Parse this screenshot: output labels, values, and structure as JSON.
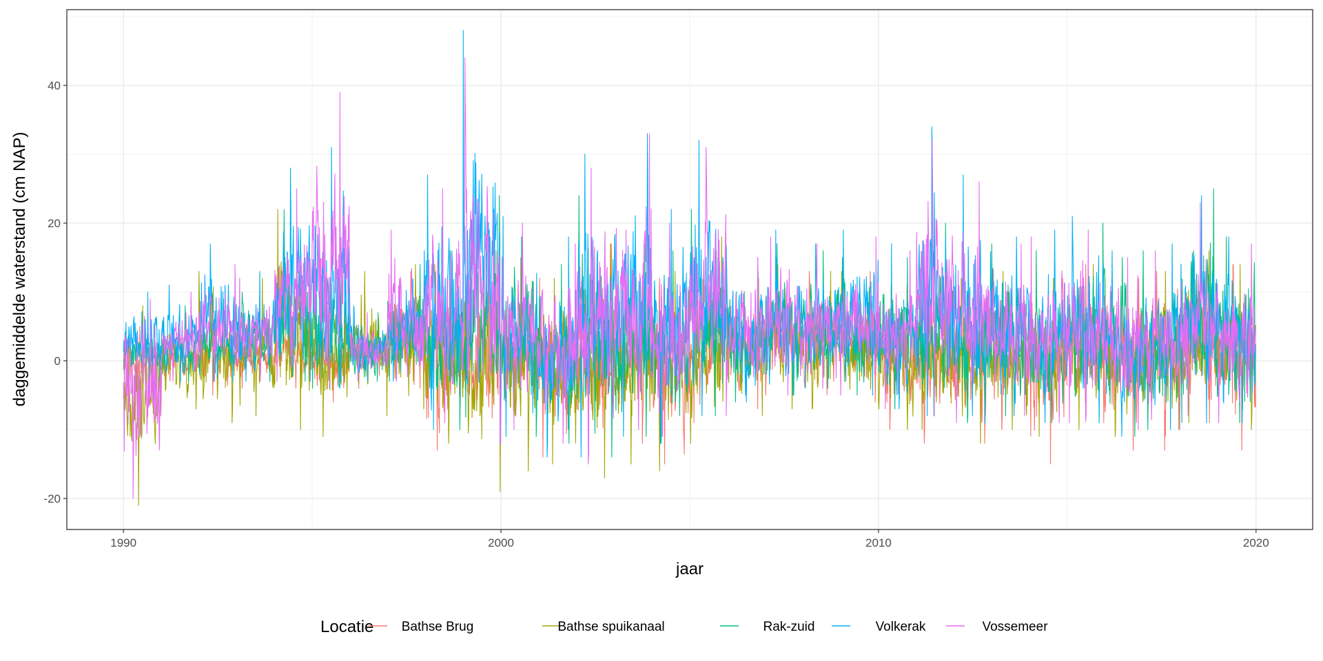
{
  "chart_data": {
    "type": "line",
    "title": "",
    "xlabel": "jaar",
    "ylabel": "daggemiddelde waterstand (cm NAP)",
    "xlim": [
      1988.5,
      2021.5
    ],
    "ylim": [
      -24.5,
      51
    ],
    "x_ticks": [
      1990,
      2000,
      2010,
      2020
    ],
    "x_tick_labels": [
      "1990",
      "2000",
      "2010",
      "2020"
    ],
    "y_ticks": [
      -20,
      0,
      20,
      40
    ],
    "y_tick_labels": [
      "-20",
      "0",
      "20",
      "40"
    ],
    "grid": true,
    "legend": {
      "title": "Locatie",
      "position": "bottom",
      "entries": [
        "Bathse Brug",
        "Bathse spuikanaal",
        "Rak-zuid",
        "Volkerak",
        "Vossemeer"
      ]
    },
    "colors": {
      "Bathse Brug": "#F8766D",
      "Bathse spuikanaal": "#A3A500",
      "Rak-zuid": "#00BF7D",
      "Volkerak": "#00B0F6",
      "Vossemeer": "#E76BF3"
    },
    "yearly_envelope": {
      "years": [
        1990,
        1991,
        1992,
        1993,
        1994,
        1995,
        1996,
        1997,
        1998,
        1999,
        2000,
        2001,
        2002,
        2003,
        2004,
        2005,
        2006,
        2007,
        2008,
        2009,
        2010,
        2011,
        2012,
        2013,
        2014,
        2015,
        2016,
        2017,
        2018,
        2019
      ],
      "series": [
        {
          "name": "Bathse Brug",
          "low": [
            -6,
            -4,
            -5,
            -4,
            -4,
            -6,
            -4,
            -4,
            -13,
            -14,
            -12,
            -14,
            -18,
            -12,
            -15,
            -9,
            -7,
            -5,
            -5,
            -6,
            -10,
            -12,
            -12,
            -10,
            -15,
            -9,
            -13,
            -13,
            -9,
            -13
          ],
          "high": [
            5,
            5,
            6,
            5,
            6,
            8,
            5,
            13,
            14,
            16,
            15,
            12,
            17,
            14,
            12,
            16,
            12,
            14,
            13,
            13,
            11,
            14,
            12,
            13,
            12,
            14,
            12,
            13,
            16,
            14
          ]
        },
        {
          "name": "Bathse spuikanaal",
          "low": [
            -21,
            -7,
            -9,
            -8,
            -10,
            -11,
            -8,
            -7,
            -12,
            -19,
            -16,
            -15,
            -17,
            -15,
            -16,
            -12,
            -8,
            -7,
            -7,
            -8,
            -10,
            -10,
            -12,
            -10,
            -11,
            -10,
            -11,
            -10,
            -9,
            -10
          ],
          "high": [
            8,
            6,
            13,
            12,
            22,
            10,
            13,
            14,
            14,
            16,
            15,
            12,
            17,
            12,
            13,
            18,
            12,
            14,
            13,
            13,
            11,
            12,
            12,
            13,
            12,
            14,
            12,
            13,
            16,
            14
          ]
        },
        {
          "name": "Rak-zuid",
          "low": [
            -3,
            -3,
            -3,
            -3,
            -3,
            -4,
            -3,
            -3,
            -10,
            -12,
            -11,
            -12,
            -14,
            -11,
            -12,
            -8,
            -6,
            -5,
            -4,
            -5,
            -7,
            -8,
            -9,
            -8,
            -9,
            -9,
            -11,
            -10,
            -9,
            -9
          ],
          "high": [
            6,
            8,
            9,
            10,
            22,
            20,
            7,
            14,
            16,
            24,
            18,
            14,
            24,
            17,
            16,
            22,
            13,
            17,
            16,
            15,
            15,
            20,
            16,
            17,
            16,
            20,
            15,
            16,
            25,
            18
          ]
        },
        {
          "name": "Volkerak",
          "low": [
            -3,
            -3,
            -3,
            -3,
            -3,
            -4,
            -3,
            -3,
            -10,
            -12,
            -11,
            -14,
            -14,
            -11,
            -12,
            -8,
            -6,
            -5,
            -4,
            -5,
            -7,
            -8,
            -9,
            -8,
            -9,
            -9,
            -11,
            -10,
            -9,
            -9
          ],
          "high": [
            10,
            11,
            17,
            13,
            28,
            31,
            8,
            16,
            27,
            48,
            21,
            18,
            30,
            33,
            22,
            32,
            15,
            19,
            17,
            19,
            17,
            34,
            27,
            18,
            19,
            21,
            16,
            17,
            24,
            18
          ]
        },
        {
          "name": "Vossemeer",
          "low": [
            -20,
            -3,
            -3,
            -3,
            -3,
            -4,
            -3,
            -3,
            -9,
            -12,
            -10,
            -12,
            -15,
            -10,
            -11,
            -8,
            -6,
            -5,
            -4,
            -5,
            -7,
            -8,
            -9,
            -8,
            -9,
            -9,
            -10,
            -10,
            -8,
            -9
          ],
          "high": [
            9,
            10,
            14,
            12,
            25,
            39,
            7,
            19,
            25,
            44,
            20,
            17,
            28,
            33,
            20,
            31,
            15,
            18,
            17,
            18,
            16,
            32,
            26,
            17,
            18,
            19,
            15,
            16,
            23,
            17
          ]
        }
      ]
    }
  }
}
